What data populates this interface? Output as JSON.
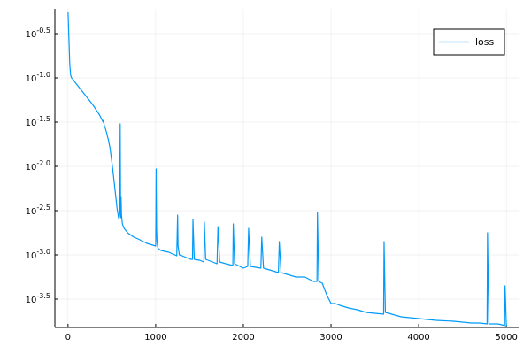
{
  "chart_data": {
    "type": "line",
    "title": "",
    "xlabel": "",
    "ylabel": "",
    "x_range": [
      -150,
      5150
    ],
    "y_range": [
      -3.82,
      -0.22
    ],
    "y_scale": "log10",
    "grid": true,
    "legend_position": "top-right",
    "x_ticks": [
      0,
      1000,
      2000,
      3000,
      4000,
      5000
    ],
    "x_tick_labels": [
      "0",
      "1000",
      "2000",
      "3000",
      "4000",
      "5000"
    ],
    "y_ticks": [
      -3.5,
      -3.0,
      -2.5,
      -2.0,
      -1.5,
      -1.0,
      -0.5
    ],
    "y_tick_base": "10",
    "y_tick_exponents": [
      "-3.5",
      "-3.0",
      "-2.5",
      "-2.0",
      "-1.5",
      "-1.0",
      "-0.5"
    ],
    "series": [
      {
        "name": "loss",
        "color": "#009AFA",
        "x": [
          0,
          10,
          20,
          30,
          40,
          60,
          80,
          120,
          160,
          200,
          240,
          280,
          320,
          360,
          400,
          405,
          415,
          420,
          440,
          460,
          480,
          500,
          520,
          540,
          560,
          580,
          590,
          595,
          600,
          605,
          610,
          615,
          620,
          640,
          680,
          750,
          800,
          900,
          1000,
          1005,
          1010,
          1015,
          1025,
          1030,
          1060,
          1150,
          1240,
          1250,
          1255,
          1270,
          1300,
          1400,
          1420,
          1425,
          1440,
          1500,
          1550,
          1555,
          1570,
          1700,
          1710,
          1730,
          1800,
          1880,
          1885,
          1900,
          2000,
          2050,
          2060,
          2080,
          2200,
          2210,
          2230,
          2300,
          2400,
          2410,
          2430,
          2500,
          2600,
          2700,
          2800,
          2840,
          2845,
          2860,
          2900,
          2950,
          3000,
          3050,
          3100,
          3200,
          3300,
          3400,
          3600,
          3605,
          3620,
          3800,
          4000,
          4200,
          4400,
          4600,
          4700,
          4780,
          4785,
          4800,
          4900,
          4950,
          4980,
          4985,
          5000
        ],
        "y": [
          -0.25,
          -0.55,
          -0.85,
          -0.97,
          -1.0,
          -1.02,
          -1.05,
          -1.1,
          -1.15,
          -1.2,
          -1.25,
          -1.3,
          -1.36,
          -1.42,
          -1.5,
          -1.48,
          -1.55,
          -1.55,
          -1.62,
          -1.7,
          -1.8,
          -1.95,
          -2.12,
          -2.3,
          -2.48,
          -2.6,
          -2.5,
          -1.52,
          -2.58,
          -2.35,
          -2.55,
          -2.6,
          -2.65,
          -2.7,
          -2.75,
          -2.8,
          -2.82,
          -2.87,
          -2.9,
          -2.03,
          -2.7,
          -2.85,
          -2.92,
          -2.93,
          -2.95,
          -2.97,
          -3.01,
          -2.55,
          -2.9,
          -3.0,
          -3.01,
          -3.05,
          -3.05,
          -2.6,
          -3.05,
          -3.06,
          -3.08,
          -2.63,
          -3.05,
          -3.1,
          -2.68,
          -3.08,
          -3.1,
          -3.12,
          -2.65,
          -3.1,
          -3.15,
          -3.13,
          -2.7,
          -3.13,
          -3.15,
          -2.8,
          -3.15,
          -3.17,
          -3.2,
          -2.85,
          -3.2,
          -3.22,
          -3.25,
          -3.25,
          -3.3,
          -3.3,
          -2.52,
          -3.3,
          -3.32,
          -3.45,
          -3.55,
          -3.55,
          -3.57,
          -3.6,
          -3.62,
          -3.65,
          -3.67,
          -2.85,
          -3.65,
          -3.7,
          -3.72,
          -3.74,
          -3.75,
          -3.77,
          -3.77,
          -3.78,
          -2.75,
          -3.78,
          -3.78,
          -3.79,
          -3.8,
          -3.35,
          -3.8
        ]
      }
    ]
  }
}
